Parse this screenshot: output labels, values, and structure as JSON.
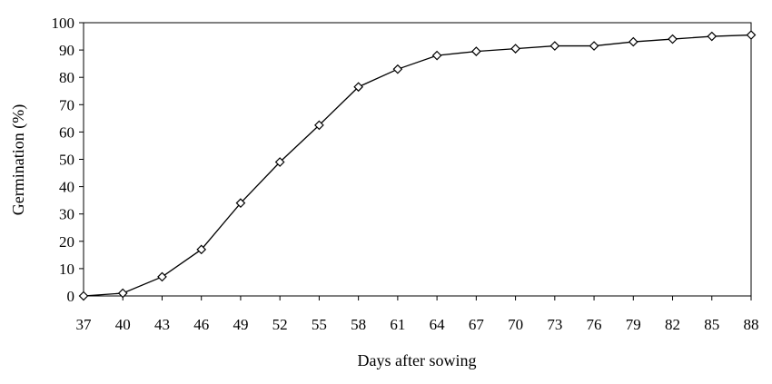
{
  "chart_data": {
    "type": "line",
    "title": "",
    "xlabel": "Days after sowing",
    "ylabel": "Germination (%)",
    "xlim": [
      37,
      88
    ],
    "ylim": [
      0,
      100
    ],
    "x_ticks": [
      "37",
      "40",
      "43",
      "46",
      "49",
      "52",
      "55",
      "58",
      "61",
      "64",
      "67",
      "70",
      "73",
      "76",
      "79",
      "82",
      "85",
      "88"
    ],
    "y_ticks": [
      "0",
      "10",
      "20",
      "30",
      "40",
      "50",
      "60",
      "70",
      "80",
      "90",
      "100"
    ],
    "grid": false,
    "legend": "none",
    "marker": "diamond-open",
    "line_color": "#000000",
    "series": [
      {
        "x": [
          37,
          40,
          43,
          46,
          49,
          52,
          55,
          58,
          61,
          64,
          67,
          70,
          73,
          76,
          79,
          82,
          85,
          88
        ],
        "y": [
          0,
          1,
          7,
          17,
          34,
          49,
          62.5,
          76.5,
          83,
          88,
          89.5,
          90.5,
          91.5,
          91.5,
          93,
          94,
          95,
          95.5
        ]
      }
    ]
  }
}
